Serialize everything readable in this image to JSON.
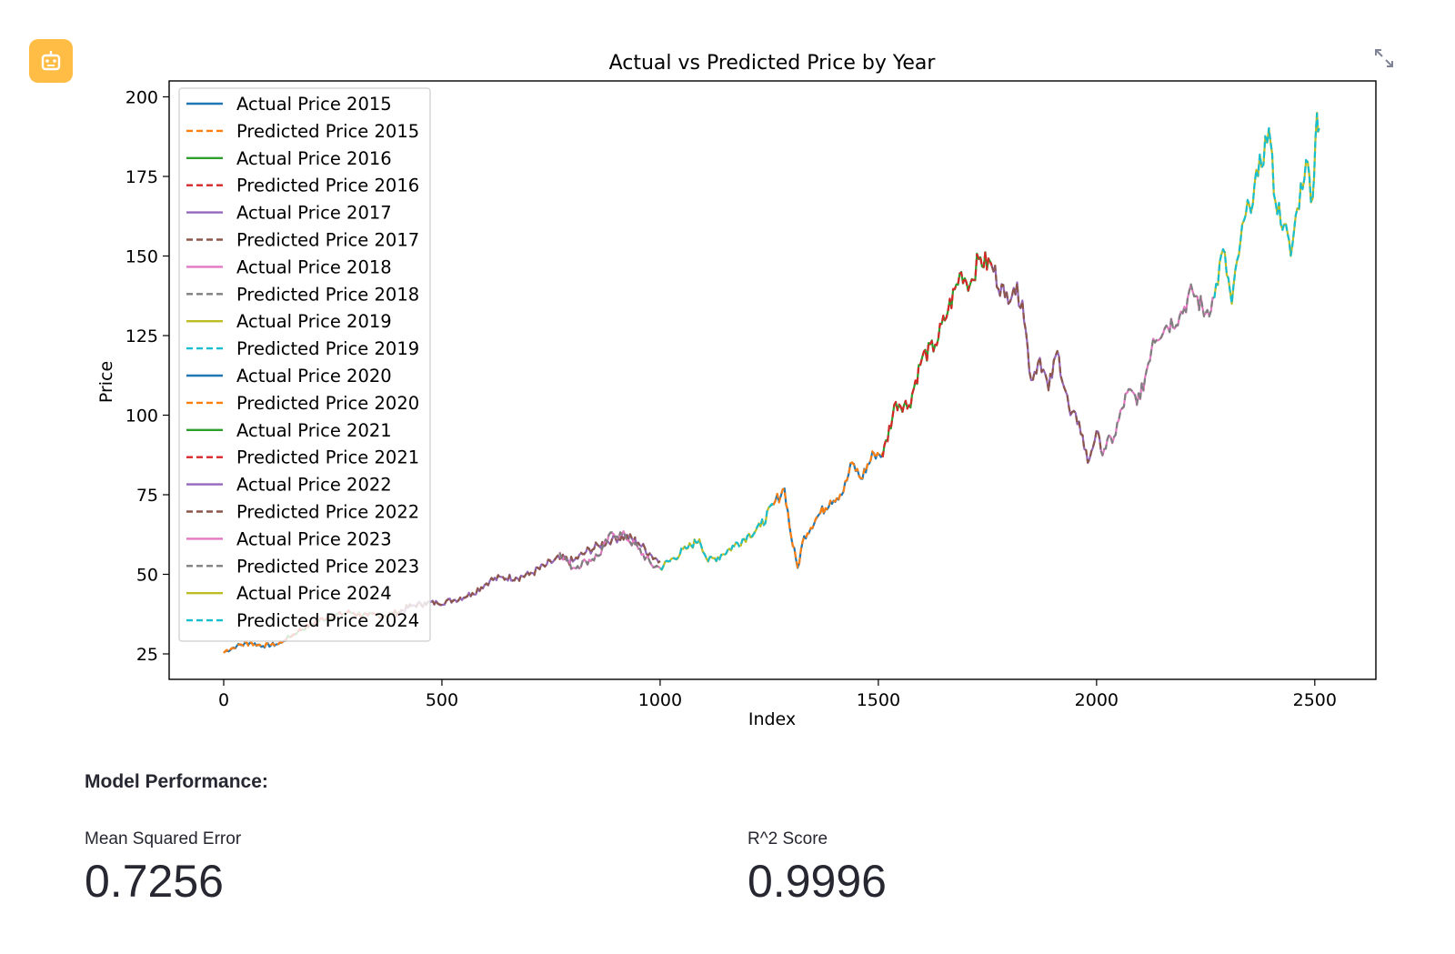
{
  "app": {
    "icon": "robot-icon",
    "accent": "#ffbd45"
  },
  "toolbar": {
    "expand_icon": "expand-icon"
  },
  "chart_data": {
    "type": "line",
    "title": "Actual vs Predicted Price by Year",
    "xlabel": "Index",
    "ylabel": "Price",
    "xlim": [
      -125,
      2640
    ],
    "ylim": [
      17,
      205
    ],
    "xticks": [
      0,
      500,
      1000,
      1500,
      2000,
      2500
    ],
    "yticks": [
      25,
      50,
      75,
      100,
      125,
      150,
      175,
      200
    ],
    "legend_position": "upper-left",
    "grid": false,
    "series": [
      {
        "name": "Actual Price 2015",
        "color": "#1f77b4",
        "dash": "solid",
        "x": [
          0,
          30,
          60,
          90,
          120,
          135
        ],
        "y": [
          25.5,
          27.5,
          28.5,
          27.5,
          28,
          28.5
        ]
      },
      {
        "name": "Predicted Price 2015",
        "color": "#ff7f0e",
        "dash": "dashed",
        "x": [
          0,
          30,
          60,
          90,
          120,
          135
        ],
        "y": [
          25.5,
          27.5,
          28.5,
          27.5,
          28,
          28.5
        ]
      },
      {
        "name": "Actual Price 2016",
        "color": "#2ca02c",
        "dash": "solid",
        "x": [
          135,
          170,
          210,
          250,
          290,
          330,
          370,
          400
        ],
        "y": [
          29,
          32,
          35,
          37,
          38,
          37,
          37,
          38
        ]
      },
      {
        "name": "Predicted Price 2016",
        "color": "#d62728",
        "dash": "dashed",
        "x": [
          135,
          170,
          210,
          250,
          290,
          330,
          370,
          400
        ],
        "y": [
          29,
          32,
          35,
          37,
          38,
          37,
          37,
          38
        ]
      },
      {
        "name": "Actual Price 2017",
        "color": "#9467bd",
        "dash": "solid",
        "x": [
          400,
          430,
          460,
          490,
          530,
          570,
          610,
          640,
          670,
          700,
          740,
          770,
          800,
          830,
          860,
          890,
          920,
          950,
          980,
          1000
        ],
        "y": [
          38,
          40,
          41,
          41,
          42,
          44,
          48,
          49,
          49,
          50,
          53,
          55,
          54,
          57,
          59,
          61,
          62,
          60,
          56,
          54
        ]
      },
      {
        "name": "Predicted Price 2017",
        "color": "#8c564b",
        "dash": "dashed",
        "x": [
          400,
          430,
          460,
          490,
          530,
          570,
          610,
          640,
          670,
          700,
          740,
          770,
          800,
          830,
          860,
          890,
          920,
          950,
          980,
          1000
        ],
        "y": [
          38,
          40,
          41,
          41,
          42,
          44,
          48,
          49,
          49,
          50,
          53,
          55,
          54,
          57,
          59,
          61,
          62,
          60,
          56,
          54
        ]
      },
      {
        "name": "Actual Price 2018",
        "color": "#e377c2",
        "dash": "solid",
        "x": [
          770,
          800,
          830,
          860,
          890,
          920,
          950,
          980,
          1000
        ],
        "y": [
          57,
          52,
          54,
          56,
          63,
          62,
          58,
          53,
          52
        ]
      },
      {
        "name": "Predicted Price 2018",
        "color": "#7f7f7f",
        "dash": "dashed",
        "x": [
          770,
          800,
          830,
          860,
          890,
          920,
          950,
          980,
          1000
        ],
        "y": [
          57,
          52,
          54,
          56,
          63,
          62,
          58,
          53,
          52
        ]
      },
      {
        "name": "Actual Price 2019",
        "color": "#bcbd22",
        "dash": "solid",
        "x": [
          1000,
          1030,
          1060,
          1090,
          1110,
          1140,
          1170,
          1200,
          1230,
          1260
        ],
        "y": [
          52,
          55,
          58,
          61,
          54,
          56,
          59,
          62,
          65,
          72
        ]
      },
      {
        "name": "Predicted Price 2019",
        "color": "#17becf",
        "dash": "dashed",
        "x": [
          1000,
          1030,
          1060,
          1090,
          1110,
          1140,
          1170,
          1200,
          1230,
          1260
        ],
        "y": [
          52,
          55,
          58,
          61,
          54,
          56,
          59,
          62,
          65,
          72
        ]
      },
      {
        "name": "Actual Price 2020",
        "color": "#1f77b4",
        "dash": "solid",
        "x": [
          1260,
          1285,
          1300,
          1315,
          1330,
          1360,
          1390,
          1420,
          1440,
          1460,
          1490,
          1510
        ],
        "y": [
          72,
          77,
          62,
          52,
          62,
          68,
          73,
          76,
          85,
          80,
          88,
          88
        ]
      },
      {
        "name": "Predicted Price 2020",
        "color": "#ff7f0e",
        "dash": "dashed",
        "x": [
          1260,
          1285,
          1300,
          1315,
          1330,
          1360,
          1390,
          1420,
          1440,
          1460,
          1490,
          1510
        ],
        "y": [
          72,
          77,
          62,
          52,
          62,
          68,
          73,
          76,
          85,
          80,
          88,
          88
        ]
      },
      {
        "name": "Actual Price 2021",
        "color": "#2ca02c",
        "dash": "solid",
        "x": [
          1510,
          1540,
          1570,
          1600,
          1630,
          1660,
          1690,
          1710,
          1730,
          1760
        ],
        "y": [
          87,
          104,
          103,
          118,
          122,
          133,
          145,
          141,
          149,
          147
        ]
      },
      {
        "name": "Predicted Price 2021",
        "color": "#d62728",
        "dash": "dashed",
        "x": [
          1510,
          1540,
          1570,
          1600,
          1630,
          1660,
          1690,
          1710,
          1730,
          1760
        ],
        "y": [
          87,
          104,
          103,
          118,
          122,
          133,
          145,
          141,
          149,
          147
        ]
      },
      {
        "name": "Actual Price 2022",
        "color": "#9467bd",
        "dash": "solid",
        "x": [
          1760,
          1790,
          1810,
          1830,
          1850,
          1870,
          1890,
          1910,
          1940,
          1960,
          1980,
          2000,
          2010
        ],
        "y": [
          147,
          137,
          140,
          136,
          111,
          118,
          108,
          120,
          100,
          98,
          85,
          95,
          89
        ]
      },
      {
        "name": "Predicted Price 2022",
        "color": "#8c564b",
        "dash": "dashed",
        "x": [
          1760,
          1790,
          1810,
          1830,
          1850,
          1870,
          1890,
          1910,
          1940,
          1960,
          1980,
          2000,
          2010
        ],
        "y": [
          147,
          137,
          140,
          136,
          111,
          118,
          108,
          120,
          100,
          98,
          85,
          95,
          89
        ]
      },
      {
        "name": "Actual Price 2023",
        "color": "#e377c2",
        "dash": "solid",
        "x": [
          2010,
          2040,
          2070,
          2100,
          2130,
          2160,
          2190,
          2220,
          2250,
          2270
        ],
        "y": [
          89,
          93,
          107,
          105,
          124,
          128,
          131,
          139,
          132,
          137
        ]
      },
      {
        "name": "Predicted Price 2023",
        "color": "#7f7f7f",
        "dash": "dashed",
        "x": [
          2010,
          2040,
          2070,
          2100,
          2130,
          2160,
          2190,
          2220,
          2250,
          2270
        ],
        "y": [
          89,
          93,
          107,
          105,
          124,
          128,
          131,
          139,
          132,
          137
        ]
      },
      {
        "name": "Actual Price 2024",
        "color": "#bcbd22",
        "dash": "solid",
        "x": [
          2270,
          2290,
          2310,
          2330,
          2350,
          2370,
          2395,
          2410,
          2430,
          2445,
          2460,
          2480,
          2495,
          2505,
          2510
        ],
        "y": [
          137,
          152,
          135,
          155,
          166,
          175,
          190,
          167,
          160,
          150,
          165,
          180,
          168,
          195,
          190
        ]
      },
      {
        "name": "Predicted Price 2024",
        "color": "#17becf",
        "dash": "dashed",
        "x": [
          2270,
          2290,
          2310,
          2330,
          2350,
          2370,
          2395,
          2410,
          2430,
          2445,
          2460,
          2480,
          2495,
          2505,
          2510
        ],
        "y": [
          137,
          152,
          135,
          155,
          166,
          175,
          190,
          167,
          160,
          150,
          165,
          180,
          168,
          195,
          190
        ]
      }
    ]
  },
  "performance": {
    "heading": "Model Performance:",
    "mse": {
      "label": "Mean Squared Error",
      "value": "0.7256"
    },
    "r2": {
      "label": "R^2 Score",
      "value": "0.9996"
    }
  }
}
